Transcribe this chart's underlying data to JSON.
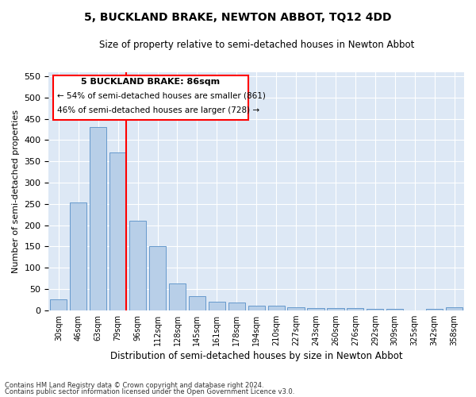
{
  "title": "5, BUCKLAND BRAKE, NEWTON ABBOT, TQ12 4DD",
  "subtitle": "Size of property relative to semi-detached houses in Newton Abbot",
  "xlabel": "Distribution of semi-detached houses by size in Newton Abbot",
  "ylabel": "Number of semi-detached properties",
  "categories": [
    "30sqm",
    "46sqm",
    "63sqm",
    "79sqm",
    "96sqm",
    "112sqm",
    "128sqm",
    "145sqm",
    "161sqm",
    "178sqm",
    "194sqm",
    "210sqm",
    "227sqm",
    "243sqm",
    "260sqm",
    "276sqm",
    "292sqm",
    "309sqm",
    "325sqm",
    "342sqm",
    "358sqm"
  ],
  "values": [
    25,
    253,
    430,
    370,
    210,
    150,
    63,
    33,
    20,
    18,
    10,
    10,
    7,
    5,
    5,
    5,
    3,
    3,
    0,
    3,
    7
  ],
  "bar_color": "#b8cfe8",
  "bar_edge_color": "#6699cc",
  "background_color": "#dde8f5",
  "grid_color": "#ffffff",
  "property_label": "5 BUCKLAND BRAKE: 86sqm",
  "pct_smaller": 54,
  "pct_larger": 46,
  "n_smaller": 861,
  "n_larger": 728,
  "redline_index": 3,
  "ylim": [
    0,
    560
  ],
  "yticks": [
    0,
    50,
    100,
    150,
    200,
    250,
    300,
    350,
    400,
    450,
    500,
    550
  ],
  "footer1": "Contains HM Land Registry data © Crown copyright and database right 2024.",
  "footer2": "Contains public sector information licensed under the Open Government Licence v3.0."
}
